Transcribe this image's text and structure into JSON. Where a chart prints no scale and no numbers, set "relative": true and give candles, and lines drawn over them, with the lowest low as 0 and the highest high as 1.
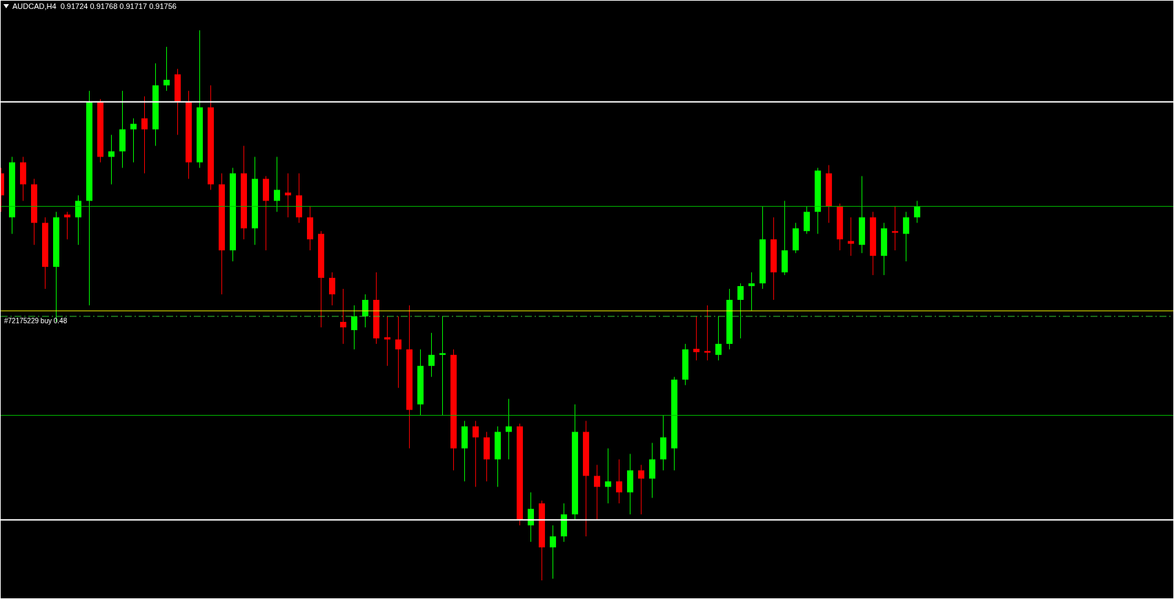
{
  "chart_data": {
    "type": "candlestick",
    "title": "AUDCAD,H4  0.91724 0.91768 0.91717 0.91756",
    "relative": true,
    "tick_labels": false,
    "categories": [
      null,
      null,
      null,
      null,
      null,
      null,
      null,
      null,
      null,
      null,
      null,
      null,
      null,
      null,
      null,
      null,
      null,
      null,
      null,
      null,
      null,
      null,
      null,
      null,
      null,
      null,
      null,
      null,
      null,
      null,
      null,
      null,
      null,
      null,
      null,
      null,
      null,
      null,
      null,
      null,
      null,
      null,
      null,
      null,
      null,
      null,
      null,
      null,
      null,
      null,
      null,
      null,
      null,
      null,
      null,
      null,
      null,
      null,
      null,
      null,
      null,
      null,
      null,
      null,
      null,
      null,
      null,
      null,
      null,
      null,
      null,
      null,
      null,
      null,
      null,
      null,
      null,
      null,
      null,
      null,
      null,
      null,
      null,
      null
    ],
    "ohlc": [
      [
        0.74,
        0.75,
        0.67,
        0.7
      ],
      [
        0.66,
        0.77,
        0.63,
        0.76
      ],
      [
        0.76,
        0.77,
        0.69,
        0.72
      ],
      [
        0.72,
        0.73,
        0.61,
        0.65
      ],
      [
        0.65,
        0.66,
        0.53,
        0.57
      ],
      [
        0.57,
        0.67,
        0.47,
        0.66
      ],
      [
        0.665,
        0.67,
        0.62,
        0.66
      ],
      [
        0.66,
        0.7,
        0.61,
        0.69
      ],
      [
        0.69,
        0.89,
        0.5,
        0.87
      ],
      [
        0.87,
        0.875,
        0.76,
        0.77
      ],
      [
        0.77,
        0.81,
        0.72,
        0.78
      ],
      [
        0.78,
        0.89,
        0.75,
        0.82
      ],
      [
        0.82,
        0.84,
        0.76,
        0.83
      ],
      [
        0.84,
        0.88,
        0.74,
        0.82
      ],
      [
        0.82,
        0.94,
        0.79,
        0.9
      ],
      [
        0.9,
        0.97,
        0.89,
        0.91
      ],
      [
        0.92,
        0.93,
        0.81,
        0.87
      ],
      [
        0.87,
        0.89,
        0.73,
        0.76
      ],
      [
        0.76,
        1,
        0.75,
        0.86
      ],
      [
        0.86,
        0.9,
        0.71,
        0.72
      ],
      [
        0.72,
        0.74,
        0.52,
        0.6
      ],
      [
        0.6,
        0.75,
        0.58,
        0.74
      ],
      [
        0.74,
        0.79,
        0.62,
        0.64
      ],
      [
        0.64,
        0.77,
        0.61,
        0.73
      ],
      [
        0.73,
        0.735,
        0.6,
        0.69
      ],
      [
        0.69,
        0.77,
        0.67,
        0.71
      ],
      [
        0.705,
        0.74,
        0.66,
        0.7
      ],
      [
        0.7,
        0.74,
        0.65,
        0.66
      ],
      [
        0.66,
        0.68,
        0.6,
        0.62
      ],
      [
        0.63,
        0.635,
        0.46,
        0.55
      ],
      [
        0.55,
        0.56,
        0.5,
        0.52
      ],
      [
        0.47,
        0.53,
        0.43,
        0.46
      ],
      [
        0.455,
        0.5,
        0.42,
        0.48
      ],
      [
        0.48,
        0.52,
        0.46,
        0.51
      ],
      [
        0.51,
        0.56,
        0.43,
        0.44
      ],
      [
        0.442,
        0.48,
        0.39,
        0.438
      ],
      [
        0.438,
        0.48,
        0.35,
        0.42
      ],
      [
        0.42,
        0.5,
        0.24,
        0.31
      ],
      [
        0.32,
        0.42,
        0.3,
        0.39
      ],
      [
        0.39,
        0.45,
        0.37,
        0.41
      ],
      [
        0.41,
        0.48,
        0.3,
        0.413
      ],
      [
        0.41,
        0.42,
        0.2,
        0.24
      ],
      [
        0.24,
        0.29,
        0.18,
        0.28
      ],
      [
        0.28,
        0.29,
        0.17,
        0.26
      ],
      [
        0.26,
        0.27,
        0.18,
        0.22
      ],
      [
        0.22,
        0.28,
        0.17,
        0.27
      ],
      [
        0.27,
        0.33,
        0.22,
        0.28
      ],
      [
        0.28,
        0.285,
        0.1,
        0.11
      ],
      [
        0.1,
        0.16,
        0.07,
        0.13
      ],
      [
        0.14,
        0.145,
        0,
        0.06
      ],
      [
        0.06,
        0.1,
        0.003,
        0.08
      ],
      [
        0.08,
        0.14,
        0.07,
        0.12
      ],
      [
        0.12,
        0.32,
        0.11,
        0.27
      ],
      [
        0.27,
        0.29,
        0.08,
        0.19
      ],
      [
        0.19,
        0.21,
        0.11,
        0.17
      ],
      [
        0.17,
        0.24,
        0.14,
        0.18
      ],
      [
        0.18,
        0.22,
        0.14,
        0.16
      ],
      [
        0.16,
        0.23,
        0.12,
        0.2
      ],
      [
        0.2,
        0.21,
        0.12,
        0.185
      ],
      [
        0.185,
        0.25,
        0.15,
        0.22
      ],
      [
        0.22,
        0.3,
        0.2,
        0.26
      ],
      [
        0.24,
        0.37,
        0.2,
        0.365
      ],
      [
        0.365,
        0.43,
        0.355,
        0.42
      ],
      [
        0.421,
        0.48,
        0.4,
        0.415
      ],
      [
        0.417,
        0.5,
        0.4,
        0.414
      ],
      [
        0.41,
        0.48,
        0.4,
        0.43
      ],
      [
        0.43,
        0.53,
        0.42,
        0.51
      ],
      [
        0.51,
        0.54,
        0.44,
        0.535
      ],
      [
        0.535,
        0.56,
        0.49,
        0.54
      ],
      [
        0.54,
        0.68,
        0.53,
        0.62
      ],
      [
        0.62,
        0.66,
        0.51,
        0.56
      ],
      [
        0.56,
        0.69,
        0.555,
        0.6
      ],
      [
        0.6,
        0.65,
        0.595,
        0.64
      ],
      [
        0.635,
        0.68,
        0.63,
        0.67
      ],
      [
        0.67,
        0.75,
        0.63,
        0.745
      ],
      [
        0.74,
        0.755,
        0.65,
        0.68
      ],
      [
        0.68,
        0.685,
        0.6,
        0.62
      ],
      [
        0.617,
        0.66,
        0.59,
        0.612
      ],
      [
        0.61,
        0.735,
        0.595,
        0.66
      ],
      [
        0.66,
        0.67,
        0.555,
        0.59
      ],
      [
        0.59,
        0.65,
        0.555,
        0.64
      ],
      [
        0.635,
        0.68,
        0.6,
        0.632
      ],
      [
        0.63,
        0.67,
        0.58,
        0.66
      ],
      [
        0.66,
        0.69,
        0.65,
        0.68
      ]
    ],
    "colors": [
      "#ff0000",
      "#00ff00",
      "#ff0000",
      "#ff0000",
      "#ff0000",
      "#00ff00",
      "#ff0000",
      "#00ff00",
      "#00ff00",
      "#ff0000",
      "#00ff00",
      "#00ff00",
      "#00ff00",
      "#ff0000",
      "#00ff00",
      "#00ff00",
      "#ff0000",
      "#ff0000",
      "#00ff00",
      "#ff0000",
      "#ff0000",
      "#00ff00",
      "#ff0000",
      "#00ff00",
      "#ff0000",
      "#00ff00",
      "#ff0000",
      "#ff0000",
      "#ff0000",
      "#ff0000",
      "#ff0000",
      "#ff0000",
      "#00ff00",
      "#00ff00",
      "#ff0000",
      "#ff0000",
      "#ff0000",
      "#ff0000",
      "#00ff00",
      "#00ff00",
      "#00ff00",
      "#ff0000",
      "#00ff00",
      "#ff0000",
      "#ff0000",
      "#00ff00",
      "#00ff00",
      "#ff0000",
      "#00ff00",
      "#ff0000",
      "#00ff00",
      "#00ff00",
      "#00ff00",
      "#ff0000",
      "#ff0000",
      "#00ff00",
      "#ff0000",
      "#00ff00",
      "#ff0000",
      "#00ff00",
      "#00ff00",
      "#00ff00",
      "#00ff00",
      "#ff0000",
      "#ff0000",
      "#00ff00",
      "#00ff00",
      "#00ff00",
      "#00ff00",
      "#00ff00",
      "#ff0000",
      "#00ff00",
      "#00ff00",
      "#00ff00",
      "#00ff00",
      "#ff0000",
      "#ff0000",
      "#ff0000",
      "#00ff00",
      "#ff0000",
      "#00ff00",
      "#ff0000",
      "#00ff00",
      "#00ff00"
    ],
    "ref_lines": [
      {
        "axis": "y",
        "value": 0.87,
        "color": "#ffffff",
        "line_style": "solid"
      },
      {
        "axis": "y",
        "value": 0.68,
        "color": "#00c000",
        "line_style": "solid"
      },
      {
        "axis": "y",
        "value": 0.49,
        "color": "#ffff00",
        "line_style": "solid"
      },
      {
        "axis": "y",
        "value": 0.48,
        "color": "#32cd32",
        "line_style": "dashed",
        "label": "#72175229 buy 0.48"
      },
      {
        "axis": "y",
        "value": 0.3,
        "color": "#00c000",
        "line_style": "solid"
      },
      {
        "axis": "y",
        "value": 0.11,
        "color": "#ffffff",
        "line_style": "solid"
      }
    ]
  }
}
